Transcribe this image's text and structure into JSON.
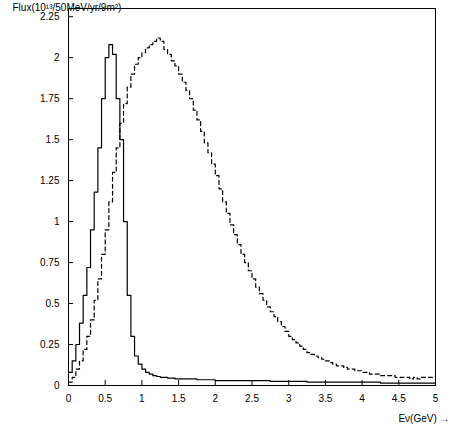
{
  "chart_data": {
    "type": "histogram",
    "x_label": "Eν(GeV)",
    "y_label": "Flux(10¹³/50MeV/yr/9m²)",
    "bins": [
      0,
      0.05,
      0.1,
      0.15,
      0.2,
      0.25,
      0.3,
      0.35,
      0.4,
      0.45,
      0.5,
      0.55,
      0.6,
      0.65,
      0.7,
      0.75,
      0.8,
      0.85,
      0.9,
      0.95,
      1,
      1.05,
      1.1,
      1.15,
      1.2,
      1.25,
      1.3,
      1.35,
      1.4,
      1.45,
      1.5,
      1.55,
      1.6,
      1.65,
      1.7,
      1.75,
      1.8,
      1.85,
      1.9,
      1.95,
      2,
      2.05,
      2.1,
      2.15,
      2.2,
      2.25,
      2.3,
      2.35,
      2.4,
      2.45,
      2.5,
      2.55,
      2.6,
      2.65,
      2.7,
      2.75,
      2.8,
      2.85,
      2.9,
      2.95,
      3,
      3.05,
      3.1,
      3.15,
      3.2,
      3.25,
      3.3,
      3.35,
      3.4,
      3.45,
      3.5,
      3.55,
      3.6,
      3.65,
      3.7,
      3.75,
      3.8,
      3.85,
      3.9,
      3.95,
      4,
      4.05,
      4.1,
      4.15,
      4.2,
      4.25,
      4.3,
      4.35,
      4.4,
      4.45,
      4.5,
      4.55,
      4.6,
      4.65,
      4.7,
      4.75,
      4.8,
      4.85,
      4.9,
      4.95,
      5
    ],
    "series": [
      {
        "color": "#000000",
        "line_style": "solid",
        "values": [
          0.08,
          0.15,
          0.25,
          0.38,
          0.55,
          0.72,
          0.95,
          1.18,
          1.45,
          1.75,
          2.0,
          2.08,
          2.02,
          1.75,
          1.5,
          1.0,
          0.55,
          0.3,
          0.18,
          0.13,
          0.1,
          0.08,
          0.07,
          0.06,
          0.055,
          0.05,
          0.05,
          0.045,
          0.045,
          0.04,
          0.04,
          0.04,
          0.04,
          0.04,
          0.04,
          0.035,
          0.035,
          0.035,
          0.035,
          0.035,
          0.03,
          0.03,
          0.03,
          0.03,
          0.03,
          0.03,
          0.03,
          0.03,
          0.03,
          0.03,
          0.03,
          0.03,
          0.03,
          0.03,
          0.03,
          0.025,
          0.025,
          0.025,
          0.025,
          0.025,
          0.025,
          0.025,
          0.025,
          0.025,
          0.025,
          0.02,
          0.02,
          0.02,
          0.02,
          0.02,
          0.02,
          0.02,
          0.02,
          0.02,
          0.02,
          0.02,
          0.02,
          0.02,
          0.02,
          0.02,
          0.02,
          0.02,
          0.02,
          0.02,
          0.02,
          0.015,
          0.015,
          0.015,
          0.015,
          0.015,
          0.015,
          0.015,
          0.015,
          0.015,
          0.015,
          0.015,
          0.015,
          0.015,
          0.015,
          0.015
        ]
      },
      {
        "color": "#000000",
        "line_style": "dashed",
        "values": [
          0.02,
          0.05,
          0.1,
          0.15,
          0.22,
          0.3,
          0.4,
          0.52,
          0.65,
          0.8,
          0.95,
          1.12,
          1.3,
          1.45,
          1.6,
          1.72,
          1.82,
          1.9,
          1.96,
          2.0,
          2.03,
          2.06,
          2.08,
          2.1,
          2.12,
          2.1,
          2.05,
          2.02,
          1.98,
          1.95,
          1.9,
          1.85,
          1.8,
          1.75,
          1.68,
          1.62,
          1.55,
          1.48,
          1.42,
          1.35,
          1.28,
          1.2,
          1.12,
          1.05,
          0.98,
          0.92,
          0.86,
          0.8,
          0.75,
          0.7,
          0.65,
          0.6,
          0.56,
          0.52,
          0.48,
          0.45,
          0.42,
          0.39,
          0.36,
          0.33,
          0.3,
          0.28,
          0.26,
          0.24,
          0.22,
          0.2,
          0.19,
          0.18,
          0.17,
          0.16,
          0.15,
          0.14,
          0.13,
          0.12,
          0.12,
          0.11,
          0.1,
          0.1,
          0.09,
          0.09,
          0.08,
          0.08,
          0.07,
          0.07,
          0.07,
          0.06,
          0.06,
          0.06,
          0.06,
          0.05,
          0.05,
          0.05,
          0.05,
          0.04,
          0.05,
          0.04,
          0.05,
          0.05,
          0.05,
          0.05
        ]
      }
    ],
    "xlim": [
      0,
      5
    ],
    "xticks": [
      0,
      0.5,
      1,
      1.5,
      2,
      2.5,
      3,
      3.5,
      4,
      4.5,
      5
    ],
    "ylim": [
      0,
      2.3
    ],
    "yticks": [
      0,
      0.25,
      0.5,
      0.75,
      1,
      1.25,
      1.5,
      1.75,
      2,
      2.25
    ],
    "grid": false
  }
}
